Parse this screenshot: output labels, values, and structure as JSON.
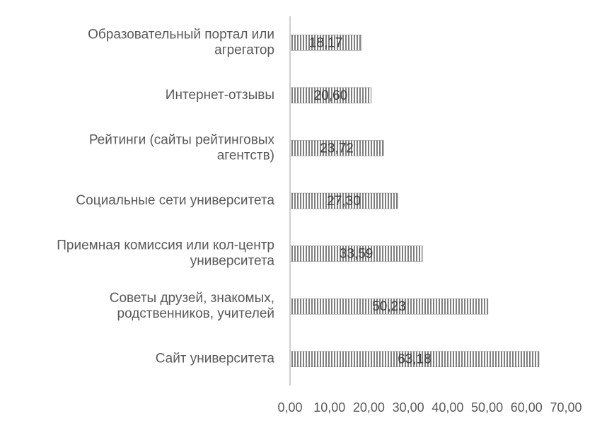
{
  "chart_data": {
    "type": "barh",
    "categories": [
      "Образовательный портал или\nагрегатор",
      "Интернет-отзывы",
      "Рейтинги (сайты рейтинговых\nагентств)",
      "Социальные сети университета",
      "Приемная комиссия или кол-центр\nуниверситета",
      "Советы друзей, знакомых,\nродственников, учителей",
      "Сайт университета"
    ],
    "values": [
      18.17,
      20.6,
      23.72,
      27.3,
      33.59,
      50.23,
      63.18
    ],
    "value_labels": [
      "18,17",
      "20,60",
      "23,72",
      "27,30",
      "33,59",
      "50,23",
      "63,18"
    ],
    "color": "#808080",
    "xlim": [
      0,
      70
    ],
    "xticks": [
      {
        "value": 0,
        "label": "0,00"
      },
      {
        "value": 10,
        "label": "10,00"
      },
      {
        "value": 20,
        "label": "20,00"
      },
      {
        "value": 30,
        "label": "30,00"
      },
      {
        "value": 40,
        "label": "40,00"
      },
      {
        "value": 50,
        "label": "50,00"
      },
      {
        "value": 60,
        "label": "60,00"
      },
      {
        "value": 70,
        "label": "70,00"
      }
    ]
  }
}
